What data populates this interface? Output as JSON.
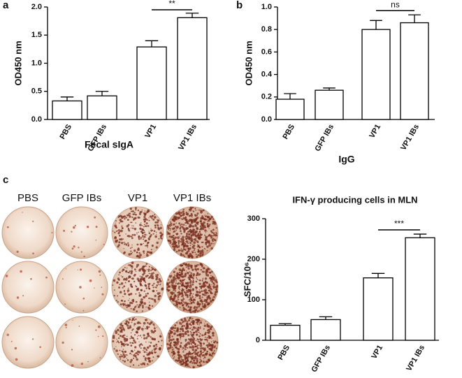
{
  "panel_labels": [
    "a",
    "b",
    "c"
  ],
  "well_labels": [
    "PBS",
    "GFP IBs",
    "VP1",
    "VP1 IBs"
  ],
  "chart_data": [
    {
      "type": "bar",
      "y_label": "OD450 nm",
      "x_label": "Fecal sIgA",
      "annotation": "**",
      "categories": [
        "PBS",
        "GFP IBs",
        "VP1",
        "VP1 IBs"
      ],
      "values": [
        0.33,
        0.42,
        1.29,
        1.81
      ],
      "errors": [
        0.07,
        0.08,
        0.11,
        0.08
      ],
      "color": "#ffffff",
      "ylim": [
        0,
        2
      ],
      "yticks": [
        {
          "value": 0,
          "label": "0.0"
        },
        0.5,
        {
          "value": 1,
          "label": "1.0"
        },
        1.5,
        {
          "value": 2,
          "label": "2.0"
        }
      ]
    },
    {
      "type": "bar",
      "y_label": "OD450 nm",
      "x_label": "IgG",
      "annotation": "ns",
      "categories": [
        "PBS",
        "GFP IBs",
        "VP1",
        "VP1 IBs"
      ],
      "values": [
        0.18,
        0.26,
        0.8,
        0.86
      ],
      "errors": [
        0.05,
        0.02,
        0.08,
        0.07
      ],
      "color": "#ffffff",
      "ylim": [
        0,
        1
      ],
      "yticks": [
        {
          "value": 0,
          "label": "0.0"
        },
        0.2,
        0.4,
        0.6,
        0.8,
        {
          "value": 1,
          "label": "1.0"
        }
      ]
    },
    {
      "type": "bar",
      "title": "IFN-γ producing cells in MLN",
      "y_label": "SFC/10⁶",
      "annotation": "***",
      "categories": [
        "PBS",
        "GFP IBs",
        "VP1",
        "VP1 IBs"
      ],
      "values": [
        37,
        51,
        154,
        253
      ],
      "errors": [
        4,
        7,
        11,
        9
      ],
      "color": "#ffffff",
      "ylim": [
        0,
        300
      ],
      "yticks": [
        0,
        100,
        200,
        300
      ]
    }
  ]
}
